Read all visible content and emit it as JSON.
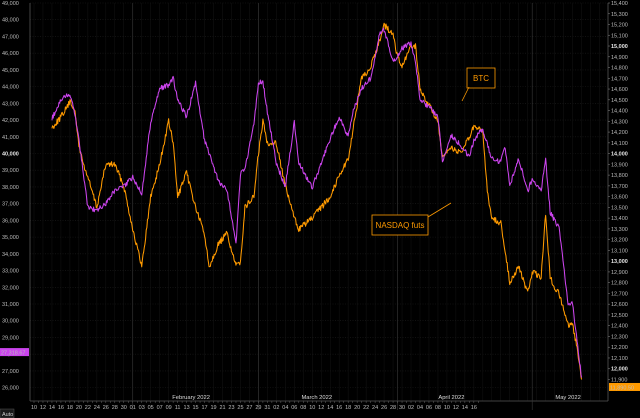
{
  "chart_data": {
    "type": "line",
    "x_range": [
      "2022-01-10",
      "2022-05-17"
    ],
    "x_ticks": [
      "10",
      "11",
      "12",
      "13",
      "14",
      "15",
      "16",
      "17",
      "18",
      "19",
      "20",
      "21",
      "22",
      "23",
      "24",
      "25",
      "26",
      "27",
      "28",
      "29",
      "30",
      "31",
      "01",
      "02",
      "03",
      "04",
      "05",
      "06",
      "07",
      "08",
      "09",
      "10",
      "11",
      "12",
      "13",
      "14",
      "15",
      "16",
      "17",
      "18",
      "19",
      "20",
      "21",
      "22",
      "23",
      "24",
      "25",
      "26",
      "27",
      "28",
      "29",
      "30",
      "31",
      "01",
      "02",
      "03",
      "04",
      "05",
      "06",
      "07",
      "08",
      "09",
      "10",
      "11",
      "12",
      "13",
      "14",
      "15",
      "16",
      "17",
      "18",
      "19",
      "20",
      "21",
      "22",
      "23",
      "24",
      "25",
      "26",
      "27",
      "28",
      "29",
      "30",
      "01",
      "02",
      "03",
      "04",
      "05",
      "06",
      "07",
      "08",
      "09",
      "10",
      "11",
      "12",
      "13",
      "14",
      "15",
      "16",
      "17"
    ],
    "months": [
      {
        "label": "February 2022",
        "date": "2022-02-14"
      },
      {
        "label": "March 2022",
        "date": "2022-03-14"
      },
      {
        "label": "April 2022",
        "date": "2022-04-13"
      },
      {
        "label": "May 2022",
        "date": "2022-05-09"
      }
    ],
    "month_boundaries": [
      "2022-02-01",
      "2022-03-01",
      "2022-04-01",
      "2022-05-01"
    ],
    "left_axis": {
      "ylim": [
        25200,
        49000
      ],
      "ticks": [
        "26,000",
        "27,000",
        "28,000",
        "29,000",
        "30,000",
        "31,000",
        "32,000",
        "33,000",
        "34,000",
        "35,000",
        "36,000",
        "37,000",
        "38,000",
        "39,000",
        "40,000",
        "41,000",
        "42,000",
        "43,000",
        "44,000",
        "45,000",
        "46,000",
        "47,000",
        "48,000",
        "49,000"
      ],
      "tick_values": [
        26000,
        27000,
        28000,
        29000,
        30000,
        31000,
        32000,
        33000,
        34000,
        35000,
        36000,
        37000,
        38000,
        39000,
        40000,
        41000,
        42000,
        43000,
        44000,
        45000,
        46000,
        47000,
        48000,
        49000
      ],
      "bold_tick": "40,000"
    },
    "right_axis": {
      "ylim": [
        11700,
        15400
      ],
      "ticks": [
        "11,900",
        "12,000",
        "12,100",
        "12,200",
        "12,300",
        "12,400",
        "12,500",
        "12,600",
        "12,700",
        "12,800",
        "12,900",
        "13,000",
        "13,100",
        "13,200",
        "13,300",
        "13,400",
        "13,500",
        "13,600",
        "13,700",
        "13,800",
        "13,900",
        "14,000",
        "14,100",
        "14,200",
        "14,300",
        "14,400",
        "14,500",
        "14,600",
        "14,700",
        "14,800",
        "14,900",
        "15,000",
        "15,100",
        "15,200",
        "15,300",
        "15,400"
      ],
      "tick_values": [
        11900,
        12000,
        12100,
        12200,
        12300,
        12400,
        12500,
        12600,
        12700,
        12800,
        12900,
        13000,
        13100,
        13200,
        13300,
        13400,
        13500,
        13600,
        13700,
        13800,
        13900,
        14000,
        14100,
        14200,
        14300,
        14400,
        14500,
        14600,
        14700,
        14800,
        14900,
        15000,
        15100,
        15200,
        15300,
        15400
      ],
      "bold_ticks": [
        "12,000",
        "13,000",
        "14,000",
        "15,000"
      ]
    },
    "series": [
      {
        "name": "BTC",
        "color": "#cc44ee",
        "axis": "left",
        "points": [
          [
            "2022-01-14",
            42100
          ],
          [
            "2022-01-16",
            43200
          ],
          [
            "2022-01-18",
            43600
          ],
          [
            "2022-01-19",
            42500
          ],
          [
            "2022-01-20",
            40900
          ],
          [
            "2022-01-21",
            38800
          ],
          [
            "2022-01-22",
            36800
          ],
          [
            "2022-01-24",
            36600
          ],
          [
            "2022-01-26",
            37000
          ],
          [
            "2022-01-28",
            37800
          ],
          [
            "2022-01-30",
            38000
          ],
          [
            "2022-02-01",
            38600
          ],
          [
            "2022-02-03",
            37600
          ],
          [
            "2022-02-05",
            41900
          ],
          [
            "2022-02-07",
            43900
          ],
          [
            "2022-02-09",
            44100
          ],
          [
            "2022-02-10",
            44500
          ],
          [
            "2022-02-11",
            43200
          ],
          [
            "2022-02-13",
            42200
          ],
          [
            "2022-02-15",
            44200
          ],
          [
            "2022-02-17",
            40800
          ],
          [
            "2022-02-18",
            40000
          ],
          [
            "2022-02-20",
            38400
          ],
          [
            "2022-02-22",
            37800
          ],
          [
            "2022-02-24",
            34600
          ],
          [
            "2022-02-25",
            38800
          ],
          [
            "2022-02-26",
            39000
          ],
          [
            "2022-02-28",
            41800
          ],
          [
            "2022-03-01",
            44200
          ],
          [
            "2022-03-02",
            44300
          ],
          [
            "2022-03-03",
            42500
          ],
          [
            "2022-03-05",
            39400
          ],
          [
            "2022-03-07",
            38000
          ],
          [
            "2022-03-09",
            41900
          ],
          [
            "2022-03-10",
            39400
          ],
          [
            "2022-03-13",
            38000
          ],
          [
            "2022-03-15",
            39400
          ],
          [
            "2022-03-17",
            40900
          ],
          [
            "2022-03-19",
            42200
          ],
          [
            "2022-03-21",
            41000
          ],
          [
            "2022-03-22",
            42400
          ],
          [
            "2022-03-24",
            43900
          ],
          [
            "2022-03-26",
            44500
          ],
          [
            "2022-03-28",
            47200
          ],
          [
            "2022-03-29",
            47400
          ],
          [
            "2022-03-31",
            45500
          ],
          [
            "2022-04-01",
            45800
          ],
          [
            "2022-04-02",
            46300
          ],
          [
            "2022-04-04",
            46600
          ],
          [
            "2022-04-05",
            45500
          ],
          [
            "2022-04-06",
            43200
          ],
          [
            "2022-04-08",
            42800
          ],
          [
            "2022-04-10",
            42200
          ],
          [
            "2022-04-11",
            39500
          ],
          [
            "2022-04-13",
            41100
          ],
          [
            "2022-04-15",
            40500
          ],
          [
            "2022-04-17",
            39800
          ],
          [
            "2022-04-18",
            40800
          ],
          [
            "2022-04-20",
            41500
          ],
          [
            "2022-04-21",
            40500
          ],
          [
            "2022-04-22",
            39700
          ],
          [
            "2022-04-24",
            39500
          ],
          [
            "2022-04-25",
            40400
          ],
          [
            "2022-04-26",
            38100
          ],
          [
            "2022-04-28",
            39700
          ],
          [
            "2022-04-30",
            37700
          ],
          [
            "2022-05-01",
            38500
          ],
          [
            "2022-05-03",
            37800
          ],
          [
            "2022-05-04",
            39600
          ],
          [
            "2022-05-05",
            36500
          ],
          [
            "2022-05-06",
            36000
          ],
          [
            "2022-05-07",
            35500
          ],
          [
            "2022-05-09",
            31000
          ],
          [
            "2022-05-10",
            31000
          ],
          [
            "2022-05-11",
            28800
          ],
          [
            "2022-05-12",
            26600
          ]
        ]
      },
      {
        "name": "NASDAQ futs",
        "color": "#ff9a00",
        "axis": "right",
        "points": [
          [
            "2022-01-14",
            14240
          ],
          [
            "2022-01-16",
            14340
          ],
          [
            "2022-01-18",
            14480
          ],
          [
            "2022-01-19",
            14420
          ],
          [
            "2022-01-20",
            14080
          ],
          [
            "2022-01-21",
            13900
          ],
          [
            "2022-01-22",
            13780
          ],
          [
            "2022-01-24",
            13500
          ],
          [
            "2022-01-26",
            13900
          ],
          [
            "2022-01-28",
            13900
          ],
          [
            "2022-01-30",
            13700
          ],
          [
            "2022-02-01",
            13300
          ],
          [
            "2022-02-03",
            12950
          ],
          [
            "2022-02-05",
            13600
          ],
          [
            "2022-02-07",
            13900
          ],
          [
            "2022-02-09",
            14300
          ],
          [
            "2022-02-10",
            14100
          ],
          [
            "2022-02-11",
            13600
          ],
          [
            "2022-02-13",
            13820
          ],
          [
            "2022-02-15",
            13500
          ],
          [
            "2022-02-17",
            13250
          ],
          [
            "2022-02-18",
            12950
          ],
          [
            "2022-02-20",
            13150
          ],
          [
            "2022-02-22",
            13260
          ],
          [
            "2022-02-24",
            12950
          ],
          [
            "2022-02-25",
            13000
          ],
          [
            "2022-02-26",
            13500
          ],
          [
            "2022-02-28",
            13600
          ],
          [
            "2022-03-01",
            14000
          ],
          [
            "2022-03-02",
            14300
          ],
          [
            "2022-03-03",
            14100
          ],
          [
            "2022-03-05",
            14100
          ],
          [
            "2022-03-07",
            13700
          ],
          [
            "2022-03-09",
            13400
          ],
          [
            "2022-03-10",
            13300
          ],
          [
            "2022-03-13",
            13400
          ],
          [
            "2022-03-15",
            13500
          ],
          [
            "2022-03-17",
            13600
          ],
          [
            "2022-03-19",
            13800
          ],
          [
            "2022-03-21",
            13950
          ],
          [
            "2022-03-22",
            14200
          ],
          [
            "2022-03-24",
            14700
          ],
          [
            "2022-03-26",
            14800
          ],
          [
            "2022-03-28",
            15050
          ],
          [
            "2022-03-29",
            15200
          ],
          [
            "2022-03-31",
            15100
          ],
          [
            "2022-04-01",
            14900
          ],
          [
            "2022-04-02",
            14800
          ],
          [
            "2022-04-04",
            15000
          ],
          [
            "2022-04-05",
            15000
          ],
          [
            "2022-04-06",
            14600
          ],
          [
            "2022-04-08",
            14450
          ],
          [
            "2022-04-10",
            14300
          ],
          [
            "2022-04-11",
            13950
          ],
          [
            "2022-04-13",
            14060
          ],
          [
            "2022-04-15",
            14000
          ],
          [
            "2022-04-17",
            14150
          ],
          [
            "2022-04-18",
            14250
          ],
          [
            "2022-04-20",
            14200
          ],
          [
            "2022-04-21",
            13650
          ],
          [
            "2022-04-22",
            13400
          ],
          [
            "2022-04-24",
            13350
          ],
          [
            "2022-04-25",
            13100
          ],
          [
            "2022-04-26",
            12800
          ],
          [
            "2022-04-28",
            12950
          ],
          [
            "2022-04-30",
            12700
          ],
          [
            "2022-05-01",
            12900
          ],
          [
            "2022-05-03",
            12850
          ],
          [
            "2022-05-04",
            13450
          ],
          [
            "2022-05-05",
            12850
          ],
          [
            "2022-05-06",
            12750
          ],
          [
            "2022-05-07",
            12700
          ],
          [
            "2022-05-09",
            12400
          ],
          [
            "2022-05-10",
            12400
          ],
          [
            "2022-05-11",
            12200
          ],
          [
            "2022-05-12",
            11900
          ]
        ]
      }
    ],
    "annotations": [
      {
        "text": "BTC",
        "color": "#ff9a00"
      },
      {
        "text": "NASDAQ futs",
        "color": "#ff9a00"
      }
    ],
    "last_value_labels": {
      "left": {
        "text": "27,318.67",
        "color": "#cc44ee"
      },
      "right": {
        "text": "11,890.50",
        "color": "#ff9a00"
      }
    },
    "auto_label": "Auto",
    "grid": true
  }
}
